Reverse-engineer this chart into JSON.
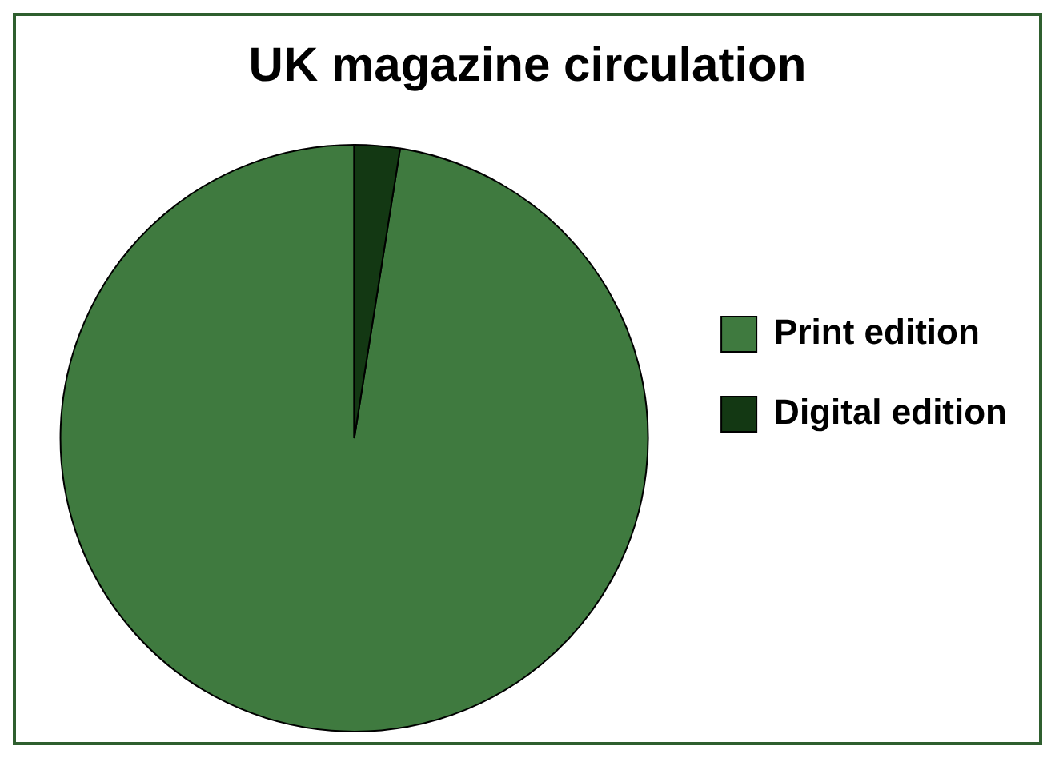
{
  "chart_data": {
    "type": "pie",
    "title": "UK magazine circulation",
    "categories": [
      "Print edition",
      "Digital edition"
    ],
    "values": [
      97.5,
      2.5
    ],
    "colors": [
      "#3f7a3f",
      "#133813"
    ],
    "legend": "right"
  }
}
